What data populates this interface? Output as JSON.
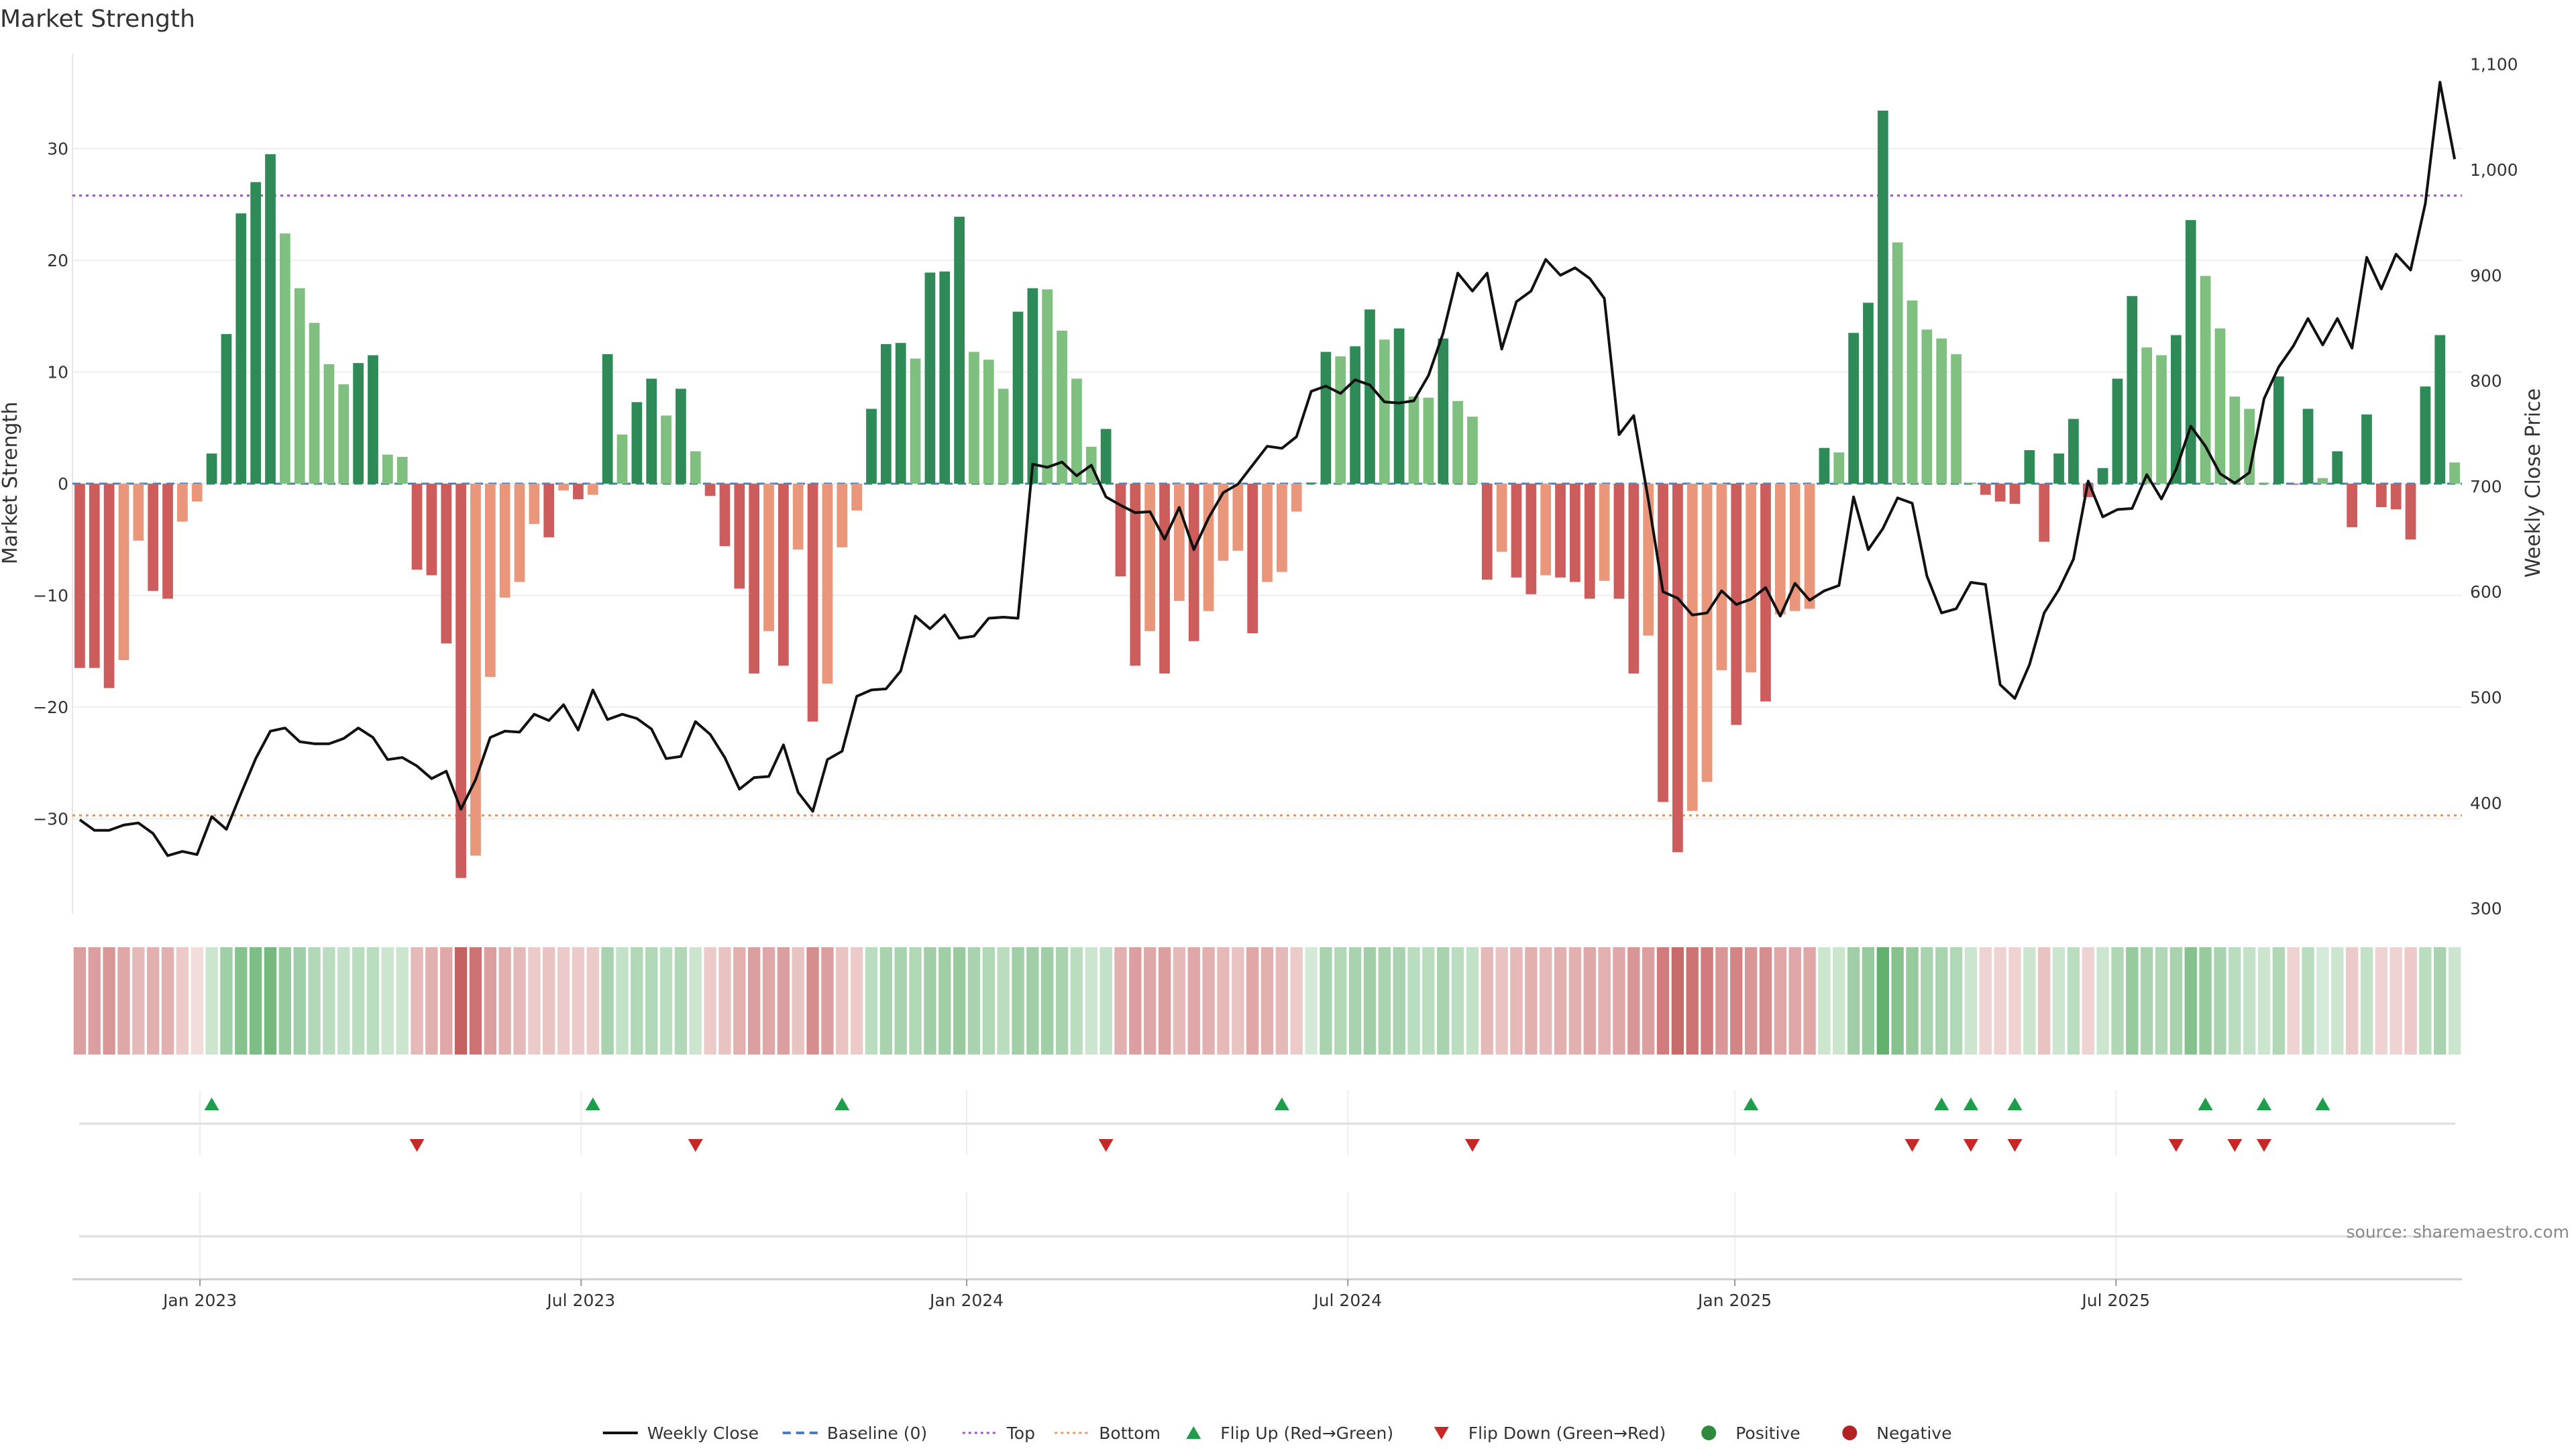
{
  "chart_data": {
    "type": "bar",
    "title": "Market Strength",
    "ylabel": "Market Strength",
    "y2label": "Weekly Close Price",
    "ylim": [
      -38.5,
      38.5
    ],
    "y2lim": [
      295,
      1110
    ],
    "yticks": [
      30,
      20,
      10,
      0,
      -10,
      -20,
      -30
    ],
    "y2ticks": [
      "1,100",
      "1,000",
      "900",
      "800",
      "700",
      "600",
      "500",
      "400",
      "300"
    ],
    "y2tick_values": [
      1100,
      1000,
      900,
      800,
      700,
      600,
      500,
      400,
      300
    ],
    "top_level": 25.8,
    "bottom_level": -29.7,
    "x_ticks": [
      "Jan 2023",
      "Jul 2023",
      "Jan 2024",
      "Jul 2024",
      "Jan 2025",
      "Jul 2025"
    ],
    "x_tick_weeks": [
      8.7,
      34.7,
      61,
      87,
      113.4,
      139.4
    ],
    "strength": [
      -16.5,
      -16.5,
      -18.3,
      -15.8,
      -5.1,
      -9.6,
      -10.3,
      -3.4,
      -1.6,
      2.7,
      13.4,
      24.2,
      27.0,
      29.5,
      22.4,
      17.5,
      14.4,
      10.7,
      8.9,
      10.8,
      11.5,
      2.6,
      2.4,
      -7.7,
      -8.2,
      -14.3,
      -35.3,
      -33.3,
      -17.3,
      -10.2,
      -8.8,
      -3.6,
      -4.8,
      -0.6,
      -1.4,
      -1.0,
      11.6,
      4.4,
      7.3,
      9.4,
      6.1,
      8.5,
      2.9,
      -1.1,
      -5.6,
      -9.4,
      -17.0,
      -13.2,
      -16.3,
      -5.9,
      -21.3,
      -17.9,
      -5.7,
      -2.4,
      6.7,
      12.5,
      12.6,
      11.2,
      18.9,
      19.0,
      23.9,
      11.8,
      11.1,
      8.5,
      15.4,
      17.5,
      17.4,
      13.7,
      9.4,
      3.3,
      4.9,
      -8.3,
      -16.3,
      -13.2,
      -17.0,
      -10.5,
      -14.1,
      -11.4,
      -6.9,
      -6.0,
      -13.4,
      -8.8,
      -7.9,
      -2.5,
      0.1,
      11.8,
      11.4,
      12.3,
      15.6,
      12.9,
      13.9,
      7.8,
      7.7,
      13.0,
      7.4,
      6.0,
      -8.6,
      -6.1,
      -8.4,
      -9.9,
      -8.2,
      -8.4,
      -8.8,
      -10.3,
      -8.7,
      -10.3,
      -17.0,
      -13.6,
      -28.5,
      -33.0,
      -29.3,
      -26.7,
      -16.7,
      -21.6,
      -16.9,
      -19.5,
      -11.7,
      -11.4,
      -11.2,
      3.2,
      2.8,
      13.5,
      16.2,
      33.4,
      21.6,
      16.4,
      13.8,
      13.0,
      11.6,
      0.1,
      -1.0,
      -1.6,
      -1.8,
      3.0,
      -5.2,
      2.7,
      5.8,
      -1.2,
      1.4,
      9.4,
      16.8,
      12.2,
      11.5,
      13.3,
      23.6,
      18.6,
      13.9,
      7.8,
      6.7,
      0.1,
      9.6,
      -0.1,
      6.7,
      0.5,
      2.9,
      -3.9,
      6.2,
      -2.1,
      -2.3,
      -5.0,
      8.7,
      13.3,
      1.9
    ],
    "weekly_close": [
      384,
      374,
      374,
      379,
      381,
      371,
      350,
      354,
      351,
      387,
      375,
      409,
      442,
      468,
      471,
      458,
      456,
      456,
      461,
      471,
      462,
      441,
      443,
      435,
      423,
      430,
      394,
      422,
      462,
      468,
      467,
      484,
      478,
      493,
      469,
      507,
      479,
      484,
      480,
      470,
      442,
      444,
      477,
      465,
      443,
      413,
      424,
      425,
      455,
      410,
      392,
      441,
      449,
      501,
      507,
      508,
      525,
      577,
      565,
      578,
      556,
      558,
      575,
      576,
      575,
      721,
      718,
      723,
      710,
      720,
      690,
      682,
      675,
      676,
      650,
      680,
      640,
      670,
      694,
      702,
      720,
      738,
      736,
      747,
      790,
      795,
      788,
      801,
      796,
      780,
      779,
      781,
      805,
      845,
      902,
      885,
      902,
      830,
      875,
      885,
      915,
      900,
      907,
      897,
      878,
      749,
      767,
      687,
      600,
      594,
      578,
      580,
      601,
      588,
      593,
      604,
      577,
      608,
      592,
      601,
      606,
      690,
      640,
      660,
      689,
      684,
      615,
      580,
      584,
      609,
      607,
      512,
      499,
      531,
      580,
      602,
      631,
      705,
      671,
      678,
      679,
      711,
      688,
      716,
      757,
      738,
      712,
      703,
      713,
      783,
      813,
      833,
      859,
      834,
      859,
      831,
      917,
      887,
      920,
      905,
      968,
      1083,
      1010
    ],
    "heat_alpha": [
      0.55,
      0.55,
      0.6,
      0.5,
      0.4,
      0.45,
      0.45,
      0.3,
      0.2,
      0.3,
      0.55,
      0.7,
      0.75,
      0.8,
      0.6,
      0.55,
      0.45,
      0.4,
      0.35,
      0.4,
      0.4,
      0.3,
      0.3,
      0.4,
      0.45,
      0.5,
      0.9,
      0.8,
      0.55,
      0.45,
      0.4,
      0.3,
      0.35,
      0.3,
      0.3,
      0.3,
      0.5,
      0.35,
      0.45,
      0.45,
      0.4,
      0.45,
      0.3,
      0.3,
      0.35,
      0.45,
      0.55,
      0.5,
      0.55,
      0.35,
      0.65,
      0.55,
      0.35,
      0.3,
      0.4,
      0.5,
      0.5,
      0.45,
      0.55,
      0.55,
      0.6,
      0.5,
      0.45,
      0.4,
      0.55,
      0.55,
      0.55,
      0.5,
      0.4,
      0.3,
      0.35,
      0.45,
      0.55,
      0.5,
      0.55,
      0.4,
      0.5,
      0.45,
      0.4,
      0.35,
      0.5,
      0.45,
      0.4,
      0.3,
      0.25,
      0.5,
      0.45,
      0.5,
      0.55,
      0.5,
      0.5,
      0.4,
      0.4,
      0.5,
      0.4,
      0.35,
      0.4,
      0.35,
      0.4,
      0.45,
      0.4,
      0.45,
      0.45,
      0.5,
      0.45,
      0.5,
      0.6,
      0.55,
      0.75,
      0.85,
      0.8,
      0.75,
      0.6,
      0.7,
      0.6,
      0.65,
      0.5,
      0.5,
      0.5,
      0.3,
      0.3,
      0.55,
      0.6,
      0.9,
      0.7,
      0.6,
      0.5,
      0.5,
      0.45,
      0.3,
      0.25,
      0.25,
      0.25,
      0.3,
      0.35,
      0.3,
      0.4,
      0.25,
      0.3,
      0.45,
      0.6,
      0.5,
      0.45,
      0.5,
      0.7,
      0.6,
      0.5,
      0.4,
      0.35,
      0.3,
      0.45,
      0.25,
      0.4,
      0.25,
      0.3,
      0.3,
      0.35,
      0.25,
      0.25,
      0.3,
      0.4,
      0.5,
      0.3
    ],
    "flip_up_weeks": [
      9,
      35,
      52,
      82,
      114,
      127,
      129,
      132,
      145,
      149,
      153
    ],
    "flip_down_weeks": [
      23,
      42,
      70,
      95,
      125,
      129,
      132,
      143,
      147,
      149
    ],
    "legend": [
      {
        "label": "Weekly Close",
        "kind": "line",
        "color": "#111111"
      },
      {
        "label": "Baseline (0)",
        "kind": "dash",
        "color": "#4a7fb5"
      },
      {
        "label": "Top",
        "kind": "dot",
        "color": "#9b59b6"
      },
      {
        "label": "Bottom",
        "kind": "dot",
        "color": "#e59866"
      },
      {
        "label": "Flip Up (Red→Green)",
        "kind": "tri-up",
        "color": "#1e9e4a"
      },
      {
        "label": "Flip Down (Green→Red)",
        "kind": "tri-down",
        "color": "#c62828"
      },
      {
        "label": "Positive",
        "kind": "circle",
        "color": "#2e8b3e"
      },
      {
        "label": "Negative",
        "kind": "circle",
        "color": "#b22222"
      }
    ],
    "source": "source: sharemaestro.com"
  },
  "colors": {
    "strong_green": "#2e8b57",
    "light_green": "#7fbf7f",
    "strong_red": "#cd5c5c",
    "light_red": "#e9967a",
    "heat_green": "#52a85e",
    "heat_red": "#c05050",
    "top_line": "#9b59b6",
    "bottom_line": "#e59866",
    "baseline": "#4a7fb5",
    "price_line": "#111111"
  }
}
